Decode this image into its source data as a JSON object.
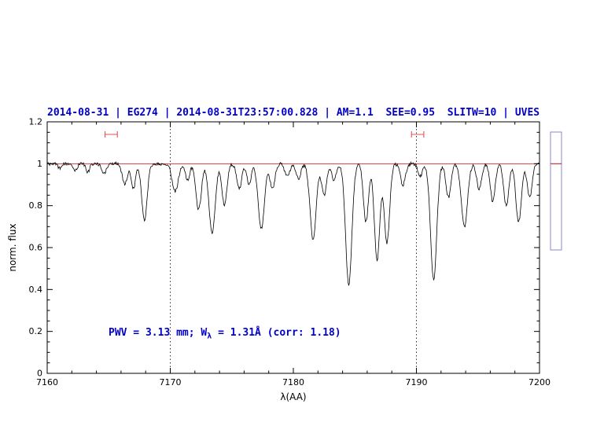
{
  "header": {
    "title_color": "#0000cd"
  },
  "chart_data": {
    "type": "line",
    "title": "2014-08-31 | EG274 | 2014-08-31T23:57:00.828 | AM=1.1  SEE=0.95  SLITW=10 | UVES",
    "xlabel": "λ(AA)",
    "ylabel": "norm. flux",
    "xlim": [
      7160,
      7200
    ],
    "ylim": [
      0,
      1.2
    ],
    "xticks": [
      7160,
      7170,
      7180,
      7190,
      7200
    ],
    "yticks": [
      0,
      0.2,
      0.4,
      0.6,
      0.8,
      1,
      1.2
    ],
    "xtick_minor": 2,
    "ytick_minor": 0.05,
    "continuum_level": 1.0,
    "continuum_color": "#cc2222",
    "line_color": "#000000",
    "marker_color": "#dd5555",
    "dotted_vlines": [
      7170,
      7190
    ],
    "range_markers": [
      {
        "x1": 7164.7,
        "x2": 7165.7,
        "y": 1.14
      },
      {
        "x1": 7189.6,
        "x2": 7190.6,
        "y": 1.14
      }
    ],
    "annotation": {
      "pre": "PWV = 3.13 mm; W",
      "sub": "λ",
      "post": " = 1.31Å (corr: 1.18)",
      "color": "#0000cd",
      "x": 7165.0,
      "y": 0.19
    },
    "sample_step": 0.05,
    "noise_amplitude": 0.008,
    "absorption_lines": [
      {
        "c": 7161.0,
        "d": 0.02,
        "w": 0.15
      },
      {
        "c": 7162.3,
        "d": 0.03,
        "w": 0.15
      },
      {
        "c": 7163.3,
        "d": 0.04,
        "w": 0.15
      },
      {
        "c": 7164.6,
        "d": 0.05,
        "w": 0.18
      },
      {
        "c": 7166.3,
        "d": 0.1,
        "w": 0.2
      },
      {
        "c": 7167.0,
        "d": 0.12,
        "w": 0.18
      },
      {
        "c": 7167.9,
        "d": 0.27,
        "w": 0.22
      },
      {
        "c": 7170.4,
        "d": 0.13,
        "w": 0.25
      },
      {
        "c": 7171.4,
        "d": 0.08,
        "w": 0.18
      },
      {
        "c": 7172.3,
        "d": 0.22,
        "w": 0.22
      },
      {
        "c": 7173.4,
        "d": 0.33,
        "w": 0.25
      },
      {
        "c": 7174.4,
        "d": 0.2,
        "w": 0.2
      },
      {
        "c": 7175.6,
        "d": 0.12,
        "w": 0.2
      },
      {
        "c": 7176.4,
        "d": 0.1,
        "w": 0.18
      },
      {
        "c": 7177.4,
        "d": 0.31,
        "w": 0.25
      },
      {
        "c": 7178.3,
        "d": 0.12,
        "w": 0.2
      },
      {
        "c": 7179.5,
        "d": 0.06,
        "w": 0.2
      },
      {
        "c": 7180.4,
        "d": 0.07,
        "w": 0.2
      },
      {
        "c": 7181.6,
        "d": 0.36,
        "w": 0.25
      },
      {
        "c": 7182.5,
        "d": 0.15,
        "w": 0.2
      },
      {
        "c": 7183.3,
        "d": 0.08,
        "w": 0.18
      },
      {
        "c": 7184.5,
        "d": 0.58,
        "w": 0.25
      },
      {
        "c": 7185.9,
        "d": 0.28,
        "w": 0.2
      },
      {
        "c": 7186.8,
        "d": 0.46,
        "w": 0.22
      },
      {
        "c": 7187.6,
        "d": 0.38,
        "w": 0.22
      },
      {
        "c": 7188.9,
        "d": 0.1,
        "w": 0.2
      },
      {
        "c": 7190.3,
        "d": 0.06,
        "w": 0.18
      },
      {
        "c": 7191.4,
        "d": 0.55,
        "w": 0.25
      },
      {
        "c": 7192.6,
        "d": 0.16,
        "w": 0.2
      },
      {
        "c": 7193.9,
        "d": 0.3,
        "w": 0.25
      },
      {
        "c": 7195.1,
        "d": 0.12,
        "w": 0.2
      },
      {
        "c": 7196.2,
        "d": 0.18,
        "w": 0.2
      },
      {
        "c": 7197.3,
        "d": 0.2,
        "w": 0.2
      },
      {
        "c": 7198.3,
        "d": 0.28,
        "w": 0.22
      },
      {
        "c": 7199.2,
        "d": 0.16,
        "w": 0.2
      }
    ]
  },
  "side_inset": {
    "border_color": "#8888cc",
    "line_color": "#cc3333"
  }
}
